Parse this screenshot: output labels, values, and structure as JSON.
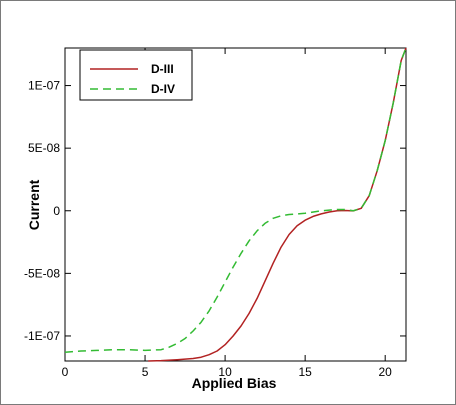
{
  "chart_data": {
    "type": "line",
    "title": "",
    "xlabel": "Applied Bias",
    "ylabel": "Current",
    "xlim": [
      0,
      21.3
    ],
    "ylim": [
      -1.2e-07,
      1.3e-07
    ],
    "xticks": [
      {
        "value": 0,
        "label": "0"
      },
      {
        "value": 5,
        "label": "5"
      },
      {
        "value": 10,
        "label": "10"
      },
      {
        "value": 15,
        "label": "15"
      },
      {
        "value": 20,
        "label": "20"
      }
    ],
    "yticks": [
      {
        "value": -1e-07,
        "label": "-1E-07"
      },
      {
        "value": -5e-08,
        "label": "-5E-08"
      },
      {
        "value": 0,
        "label": "0"
      },
      {
        "value": 5e-08,
        "label": "5E-08"
      },
      {
        "value": 1e-07,
        "label": "1E-07"
      }
    ],
    "legend_position": "top-left",
    "grid": false,
    "series": [
      {
        "name": "D-III",
        "color": "#b22222",
        "dash": "solid",
        "points": [
          [
            5.2,
            -1.2e-07
          ],
          [
            6,
            -1.197e-07
          ],
          [
            7,
            -1.19e-07
          ],
          [
            8,
            -1.18e-07
          ],
          [
            8.5,
            -1.17e-07
          ],
          [
            9,
            -1.15e-07
          ],
          [
            9.5,
            -1.12e-07
          ],
          [
            10,
            -1.07e-07
          ],
          [
            10.5,
            -1e-07
          ],
          [
            11,
            -9.2e-08
          ],
          [
            11.5,
            -8.2e-08
          ],
          [
            12,
            -7e-08
          ],
          [
            12.5,
            -5.6e-08
          ],
          [
            13,
            -4.2e-08
          ],
          [
            13.5,
            -2.9e-08
          ],
          [
            14,
            -1.9e-08
          ],
          [
            14.5,
            -1.2e-08
          ],
          [
            15,
            -7.5e-09
          ],
          [
            15.5,
            -4.5e-09
          ],
          [
            16,
            -2.5e-09
          ],
          [
            16.5,
            -1e-09
          ],
          [
            17,
            0
          ],
          [
            17.5,
            2e-10
          ],
          [
            18,
            -1e-10
          ],
          [
            18.5,
            2e-09
          ],
          [
            19,
            1.2e-08
          ],
          [
            19.5,
            3.2e-08
          ],
          [
            20,
            5.6e-08
          ],
          [
            20.5,
            8.6e-08
          ],
          [
            21,
            1.2e-07
          ],
          [
            21.3,
            1.3e-07
          ]
        ]
      },
      {
        "name": "D-IV",
        "color": "#33bb33",
        "dash": "dashed",
        "points": [
          [
            0,
            -1.13e-07
          ],
          [
            1,
            -1.12e-07
          ],
          [
            2,
            -1.115e-07
          ],
          [
            3,
            -1.11e-07
          ],
          [
            4,
            -1.11e-07
          ],
          [
            5,
            -1.115e-07
          ],
          [
            6,
            -1.11e-07
          ],
          [
            6.5,
            -1.09e-07
          ],
          [
            7,
            -1.06e-07
          ],
          [
            7.5,
            -1.02e-07
          ],
          [
            8,
            -9.6e-08
          ],
          [
            8.5,
            -8.9e-08
          ],
          [
            9,
            -8e-08
          ],
          [
            9.5,
            -6.9e-08
          ],
          [
            10,
            -5.7e-08
          ],
          [
            10.5,
            -4.5e-08
          ],
          [
            11,
            -3.4e-08
          ],
          [
            11.5,
            -2.4e-08
          ],
          [
            12,
            -1.6e-08
          ],
          [
            12.5,
            -1e-08
          ],
          [
            13,
            -6e-09
          ],
          [
            13.5,
            -4e-09
          ],
          [
            14,
            -3e-09
          ],
          [
            15,
            -2e-09
          ],
          [
            16,
            0
          ],
          [
            17,
            1e-09
          ],
          [
            17.5,
            1e-09
          ],
          [
            18,
            0
          ],
          [
            18.5,
            2e-09
          ],
          [
            19,
            1.2e-08
          ],
          [
            19.5,
            3.2e-08
          ],
          [
            20,
            5.6e-08
          ],
          [
            20.5,
            8.6e-08
          ],
          [
            21,
            1.2e-07
          ],
          [
            21.3,
            1.3e-07
          ]
        ]
      }
    ]
  }
}
